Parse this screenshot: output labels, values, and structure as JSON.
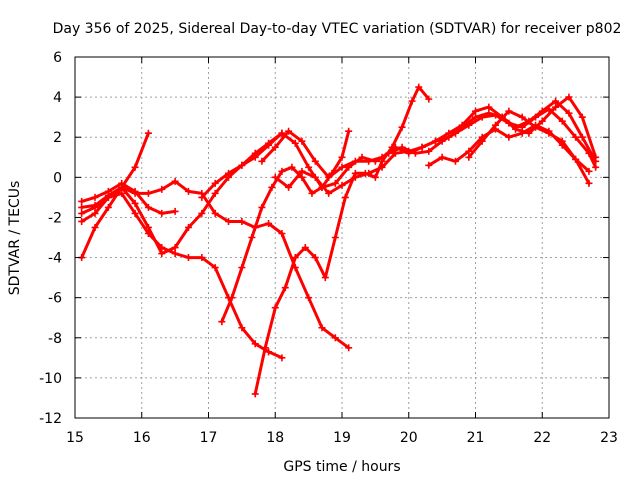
{
  "chart_data": {
    "type": "scatter",
    "title": "Day 356 of 2025, Sidereal Day-to-day VTEC variation (SDTVAR) for receiver p802",
    "xlabel": "GPS time / hours",
    "ylabel": "SDTVAR / TECUs",
    "xlim": [
      15,
      23
    ],
    "ylim": [
      -12,
      6
    ],
    "xticks": [
      "15",
      "16",
      "17",
      "18",
      "19",
      "20",
      "21",
      "22",
      "23"
    ],
    "yticks": [
      "-12",
      "-10",
      "-8",
      "-6",
      "-4",
      "-2",
      "0",
      "2",
      "4",
      "6"
    ],
    "grid": true,
    "marker": "plus",
    "color": "#ff0000",
    "series": [
      {
        "x": [
          15.1,
          15.3,
          15.5,
          15.7,
          15.9,
          16.1,
          16.3,
          16.5
        ],
        "y": [
          -1.2,
          -1.0,
          -0.7,
          -0.3,
          -0.7,
          -1.5,
          -1.8,
          -1.7
        ]
      },
      {
        "x": [
          15.1,
          15.3,
          15.5,
          15.7,
          15.9,
          16.1,
          16.3,
          16.5,
          16.7,
          16.9,
          17.1,
          17.3,
          17.5,
          17.7,
          17.9,
          18.1,
          18.3,
          18.5,
          18.7,
          18.9,
          19.1
        ],
        "y": [
          -1.5,
          -1.4,
          -0.9,
          -0.5,
          -0.8,
          -0.8,
          -0.6,
          -0.2,
          -0.7,
          -0.8,
          -1.8,
          -2.2,
          -2.2,
          -2.5,
          -2.3,
          -2.8,
          -4.5,
          -6.0,
          -7.5,
          -8.0,
          -8.5
        ]
      },
      {
        "x": [
          15.1,
          15.3,
          15.5,
          15.7,
          15.9,
          16.1,
          16.3,
          16.5,
          16.7,
          16.9,
          17.1,
          17.3,
          17.5,
          17.7,
          17.9,
          18.1
        ],
        "y": [
          -1.8,
          -1.5,
          -1.0,
          -0.5,
          -1.3,
          -2.5,
          -3.8,
          -3.5,
          -2.5,
          -1.8,
          -0.8,
          0.0,
          0.6,
          1.0,
          1.6,
          2.2
        ]
      },
      {
        "x": [
          15.1,
          15.3,
          15.5,
          15.7,
          15.9,
          16.1,
          16.3,
          16.5,
          16.7,
          16.9,
          17.1,
          17.3,
          17.5,
          17.7,
          17.9,
          18.1
        ],
        "y": [
          -2.2,
          -1.8,
          -1.0,
          -0.8,
          -1.8,
          -2.8,
          -3.5,
          -3.8,
          -4.0,
          -4.0,
          -4.5,
          -6.0,
          -7.5,
          -8.3,
          -8.7,
          -9.0
        ]
      },
      {
        "x": [
          15.1,
          15.3,
          15.5,
          15.7,
          15.9,
          16.1
        ],
        "y": [
          -4.0,
          -2.5,
          -1.5,
          -0.5,
          0.5,
          2.2
        ]
      },
      {
        "x": [
          17.2,
          17.35,
          17.5,
          17.65,
          17.8,
          17.95,
          18.1,
          18.25,
          18.4,
          18.55,
          18.7,
          18.85,
          19.0,
          19.1
        ],
        "y": [
          -7.2,
          -6.0,
          -4.5,
          -3.0,
          -1.5,
          -0.5,
          0.3,
          0.5,
          0.0,
          -0.8,
          -0.5,
          0.2,
          1.0,
          2.3
        ]
      },
      {
        "x": [
          17.7,
          17.85,
          18.0,
          18.15,
          18.3,
          18.45,
          18.6,
          18.75,
          18.9,
          19.05,
          19.2,
          19.35,
          19.5,
          19.6,
          19.75,
          19.9,
          20.05,
          20.15,
          20.3
        ],
        "y": [
          -10.8,
          -8.5,
          -6.5,
          -5.5,
          -4.0,
          -3.5,
          -4.0,
          -5.0,
          -3.0,
          -1.0,
          0.2,
          0.2,
          0.0,
          0.8,
          1.5,
          2.5,
          3.8,
          4.5,
          3.9
        ]
      },
      {
        "x": [
          16.9,
          17.1,
          17.3,
          17.5,
          17.7,
          17.9,
          18.1,
          18.3,
          18.5,
          18.7,
          18.9,
          19.1,
          19.3,
          19.5,
          19.7,
          19.9,
          20.1,
          20.3,
          20.5,
          20.7,
          20.9,
          21.1,
          21.3,
          21.5,
          21.7,
          21.9,
          22.1,
          22.3,
          22.5,
          22.7,
          22.8
        ],
        "y": [
          -1.0,
          -0.3,
          0.2,
          0.6,
          1.2,
          1.7,
          2.2,
          1.7,
          0.5,
          -0.5,
          -0.3,
          0.5,
          1.0,
          0.8,
          1.2,
          1.5,
          1.2,
          1.3,
          1.8,
          2.2,
          2.6,
          3.0,
          3.1,
          2.7,
          2.5,
          3.0,
          3.4,
          2.8,
          2.0,
          1.2,
          0.5
        ]
      },
      {
        "x": [
          17.8,
          18.0,
          18.2,
          18.4,
          18.6,
          18.8,
          19.0,
          19.2,
          19.4,
          19.6,
          19.8,
          20.0,
          20.2,
          20.4,
          20.6,
          20.8,
          21.0,
          21.2,
          21.4,
          21.6,
          21.8,
          22.0,
          22.2,
          22.4,
          22.6,
          22.8
        ],
        "y": [
          0.8,
          1.5,
          2.3,
          1.8,
          0.8,
          0.0,
          0.5,
          0.8,
          0.8,
          1.0,
          1.5,
          1.2,
          1.5,
          1.8,
          2.0,
          2.5,
          3.0,
          3.2,
          3.0,
          2.5,
          2.8,
          3.3,
          3.8,
          3.2,
          2.0,
          0.8
        ]
      },
      {
        "x": [
          18.0,
          18.2,
          18.4,
          18.6,
          18.8,
          19.0,
          19.2,
          19.4,
          19.6,
          19.8,
          20.0,
          20.2,
          20.4,
          20.6,
          20.8,
          21.0,
          21.2,
          21.4,
          21.6,
          21.8,
          22.0,
          22.2,
          22.4,
          22.6,
          22.8
        ],
        "y": [
          0.0,
          -0.5,
          0.3,
          0.0,
          -0.8,
          -0.4,
          0.0,
          0.2,
          0.5,
          1.2,
          1.3,
          1.5,
          1.8,
          2.2,
          2.6,
          3.3,
          3.5,
          3.0,
          2.4,
          2.2,
          2.8,
          3.5,
          4.0,
          3.0,
          1.0
        ]
      },
      {
        "x": [
          20.3,
          20.5,
          20.7,
          20.9,
          21.1,
          21.3,
          21.5,
          21.7,
          21.9,
          22.1,
          22.3,
          22.5,
          22.7
        ],
        "y": [
          0.6,
          1.0,
          0.8,
          1.3,
          2.0,
          2.4,
          2.0,
          2.2,
          2.6,
          2.3,
          1.6,
          0.9,
          0.3
        ]
      },
      {
        "x": [
          20.9,
          21.1,
          21.3,
          21.5,
          21.7,
          21.9,
          22.1,
          22.3,
          22.5,
          22.7
        ],
        "y": [
          1.0,
          1.8,
          2.6,
          3.3,
          3.0,
          2.5,
          2.2,
          1.8,
          0.9,
          -0.3
        ]
      }
    ]
  }
}
